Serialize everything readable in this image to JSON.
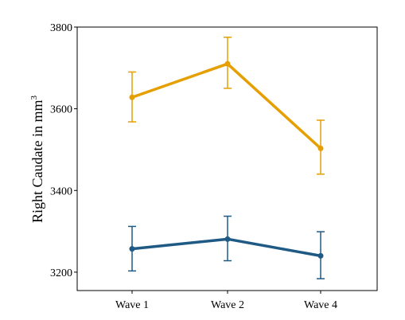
{
  "chart_data": {
    "type": "line",
    "categories": [
      "Wave 1",
      "Wave 2",
      "Wave 4"
    ],
    "ylabel": "Right Caudate in mm",
    "ylabel_superscript": "3",
    "xlabel": "",
    "ylim": [
      3155,
      3800
    ],
    "yticks": [
      3200,
      3400,
      3600,
      3800
    ],
    "grid": false,
    "legend": "none",
    "series": [
      {
        "color": "#E69F00",
        "values": [
          3628,
          3710,
          3503
        ],
        "error_low": [
          3568,
          3650,
          3440
        ],
        "error_high": [
          3690,
          3775,
          3572
        ]
      },
      {
        "color": "#1F5A85",
        "values": [
          3257,
          3281,
          3240
        ],
        "error_low": [
          3203,
          3228,
          3184
        ],
        "error_high": [
          3312,
          3337,
          3299
        ]
      }
    ]
  }
}
